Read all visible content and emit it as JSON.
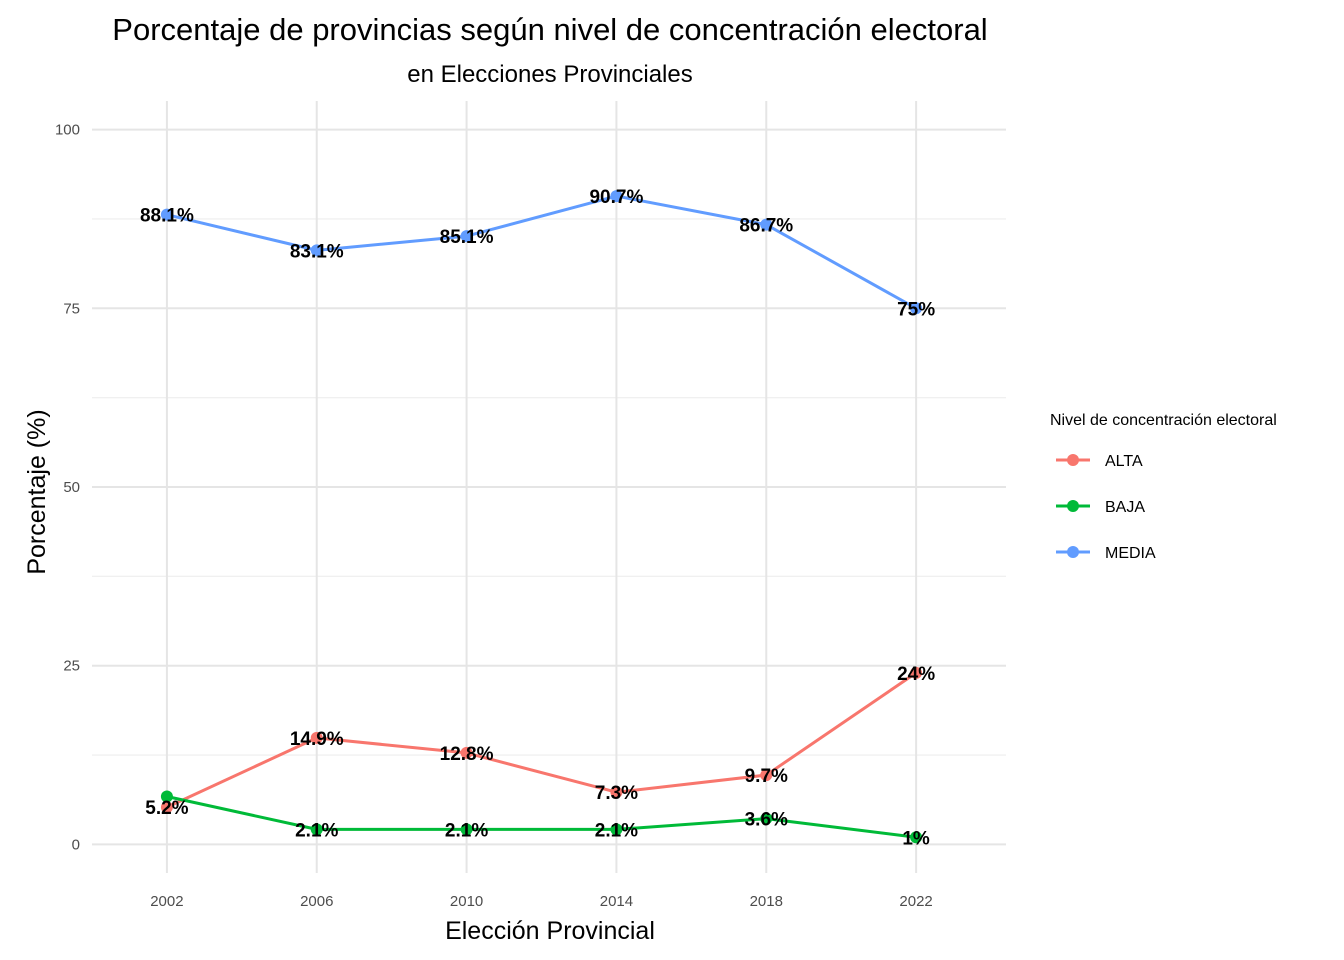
{
  "chart_data": {
    "type": "line",
    "title": "Porcentaje de provincias según nivel de concentración electoral",
    "subtitle": "en Elecciones Provinciales",
    "xlabel": "Elección Provincial",
    "ylabel": "Porcentaje (%)",
    "x": [
      2002,
      2006,
      2010,
      2014,
      2018,
      2022
    ],
    "x_tick_labels": [
      "2002",
      "2006",
      "2010",
      "2014",
      "2018",
      "2022"
    ],
    "y_ticks": [
      0,
      25,
      50,
      75,
      100
    ],
    "y_tick_labels": [
      "0",
      "25",
      "50",
      "75",
      "100"
    ],
    "ylim": [
      -4,
      104
    ],
    "xlim": [
      2000,
      2024.4
    ],
    "grid": true,
    "legend": {
      "title": "Nivel de concentración electoral",
      "position": "right"
    },
    "series": [
      {
        "name": "ALTA",
        "color": "#F8766D",
        "values": [
          5.2,
          14.9,
          12.8,
          7.3,
          9.7,
          24
        ],
        "labels": [
          "5.2%",
          "14.9%",
          "12.8%",
          "7.3%",
          "9.7%",
          "24%"
        ]
      },
      {
        "name": "BAJA",
        "color": "#00BA38",
        "values": [
          6.7,
          2.1,
          2.1,
          2.1,
          3.6,
          1
        ],
        "labels": [
          "",
          "2.1%",
          "2.1%",
          "2.1%",
          "3.6%",
          "1%"
        ]
      },
      {
        "name": "MEDIA",
        "color": "#619CFF",
        "values": [
          88.1,
          83.1,
          85.1,
          90.7,
          86.7,
          75
        ],
        "labels": [
          "88.1%",
          "83.1%",
          "85.1%",
          "90.7%",
          "86.7%",
          "75%"
        ]
      }
    ]
  }
}
